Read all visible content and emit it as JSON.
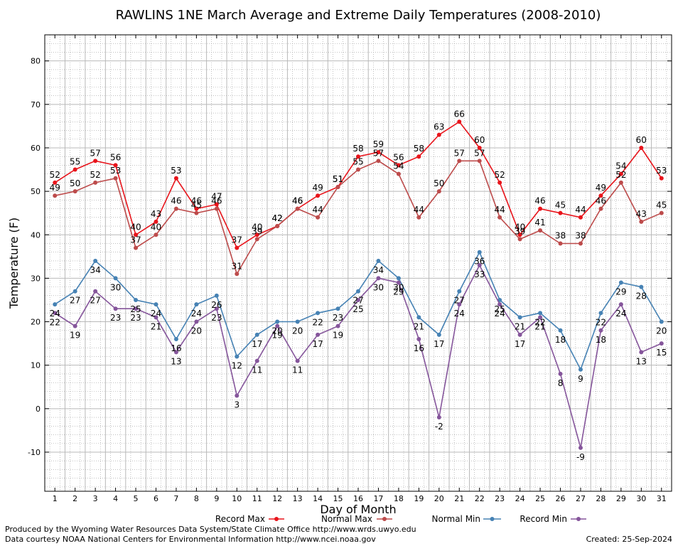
{
  "chart_data": {
    "type": "line",
    "title": "RAWLINS 1NE March Average and Extreme Daily Temperatures (2008-2010)",
    "xlabel": "Day of Month",
    "ylabel": "Temperature (F)",
    "ylim": [
      -19,
      86
    ],
    "yticks": [
      -10,
      0,
      10,
      20,
      30,
      40,
      50,
      60,
      70,
      80
    ],
    "grid": true,
    "legend_position": "bottom",
    "x": [
      1,
      2,
      3,
      4,
      5,
      6,
      7,
      8,
      9,
      10,
      11,
      12,
      13,
      14,
      15,
      16,
      17,
      18,
      19,
      20,
      21,
      22,
      23,
      24,
      25,
      26,
      27,
      28,
      29,
      30,
      31
    ],
    "series": [
      {
        "name": "Record Max",
        "color": "#e8141b",
        "label_side": "above",
        "values": [
          52,
          55,
          57,
          56,
          40,
          43,
          53,
          46,
          47,
          37,
          40,
          42,
          46,
          49,
          51,
          58,
          59,
          56,
          58,
          63,
          66,
          60,
          52,
          40,
          46,
          45,
          44,
          49,
          54,
          60,
          53
        ]
      },
      {
        "name": "Normal Max",
        "color": "#bd4b4b",
        "label_side": "above",
        "values": [
          49,
          50,
          52,
          53,
          37,
          40,
          46,
          45,
          46,
          31,
          39,
          42,
          46,
          44,
          51,
          55,
          57,
          54,
          44,
          50,
          57,
          57,
          44,
          39,
          41,
          38,
          38,
          46,
          52,
          43,
          45
        ]
      },
      {
        "name": "Normal Min",
        "color": "#4682b4",
        "label_side": "below",
        "values": [
          24,
          27,
          34,
          30,
          25,
          24,
          16,
          24,
          26,
          12,
          17,
          20,
          20,
          22,
          23,
          27,
          34,
          30,
          21,
          17,
          27,
          36,
          25,
          21,
          22,
          18,
          9,
          22,
          29,
          28,
          20
        ]
      },
      {
        "name": "Record Min",
        "color": "#85559b",
        "label_side": "below",
        "values": [
          22,
          19,
          27,
          23,
          23,
          21,
          13,
          20,
          23,
          3,
          11,
          19,
          11,
          17,
          19,
          25,
          30,
          29,
          16,
          -2,
          24,
          33,
          24,
          17,
          21,
          8,
          -9,
          18,
          24,
          13,
          15
        ]
      }
    ]
  },
  "footer": {
    "credit1": "Produced by the Wyoming Water Resources Data System/State Climate Office http://www.wrds.uwyo.edu",
    "credit2": "Data courtesy NOAA National Centers for Environmental Information http://www.ncei.noaa.gov",
    "created": "Created:  25-Sep-2024"
  }
}
